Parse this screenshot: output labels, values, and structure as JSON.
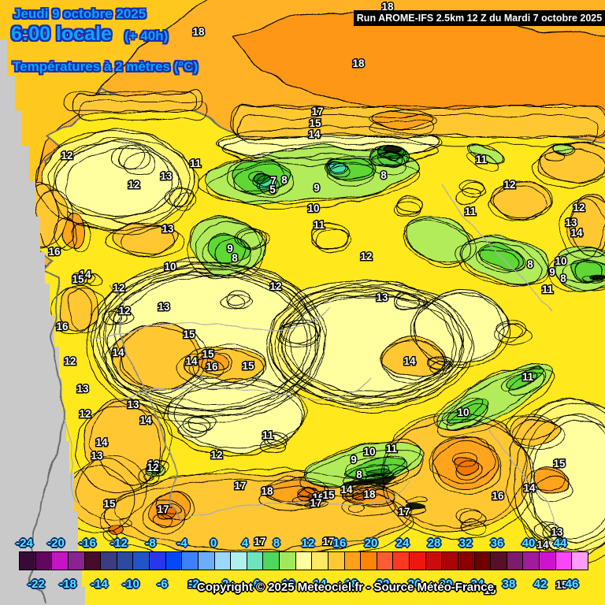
{
  "header": {
    "date": "Jeudi 9 octobre 2025",
    "time": "6:00 locale",
    "offset": "(+ 40h)",
    "variable": "Températures à 2 mètres (°C)"
  },
  "run_bar": {
    "text": "Run AROME-IFS 2.5km 12 Z du Mardi 7 octobre 2025"
  },
  "footer": {
    "copyright": "Copyright © 2025 Meteociel.fr - Source Météo-France"
  },
  "colors": {
    "header_text": "#0ba6f5",
    "header_outline": "#1a2bb0",
    "run_bar_bg": "#000000",
    "run_bar_text": "#ffffff",
    "scale_label": "#5fe4ff",
    "scale_label_outline": "#032a6e",
    "contour_label_fill": "#ffffff",
    "contour_label_outline": "#000000",
    "sea_orange": "#ffb228",
    "sea_dark_orange": "#ff9714",
    "sea_gold": "#ffc81e",
    "land_yellow": "#ffe81a",
    "land_pale_yellow": "#ffffa0",
    "land_gold": "#ffc832",
    "land_orange": "#ffa41e",
    "land_dark_orange": "#f07800",
    "mountain_light_green": "#b2ec5a",
    "mountain_green": "#5ed836",
    "mountain_teal": "#47dfa2",
    "outside_domain_grey": "#c9c9c9",
    "coastline_grey": "#6e6e6e"
  },
  "scale": {
    "unit": "°C",
    "top_labels": [
      "-24",
      "-20",
      "-16",
      "-12",
      "-8",
      "-4",
      "0",
      "4",
      "8",
      "12",
      "16",
      "20",
      "24",
      "28",
      "32",
      "36",
      "40",
      "44"
    ],
    "bottom_labels": [
      "-22",
      "-18",
      "-14",
      "-10",
      "-6",
      "-2",
      "2",
      "6",
      "10",
      "14",
      "18",
      "22",
      "26",
      "30",
      "34",
      "38",
      "42",
      "46"
    ],
    "swatches": [
      "#380a38",
      "#62065e",
      "#c414c4",
      "#8a2290",
      "#460c2a",
      "#3c3c80",
      "#2c4aa0",
      "#2054c8",
      "#2836ec",
      "#0448fc",
      "#3c80fc",
      "#6cacfc",
      "#9cd8fc",
      "#aef0ec",
      "#6ce4bc",
      "#50d85c",
      "#a2e85c",
      "#ffffa0",
      "#ffe863",
      "#ffc832",
      "#ffa018",
      "#ff8404",
      "#fc5c34",
      "#fc3820",
      "#ec1810",
      "#cc0c0c",
      "#ac0404",
      "#8c0000",
      "#700000",
      "#581028",
      "#7c1c6c",
      "#a01c9c",
      "#cc14cc",
      "#f846f8",
      "#fc9cfc"
    ]
  },
  "map": {
    "contour_labels": [
      [
        18,
        252,
        40
      ],
      [
        18,
        492,
        8
      ],
      [
        18,
        455,
        80
      ],
      [
        17,
        403,
        141
      ],
      [
        15,
        400,
        156
      ],
      [
        14,
        399,
        170
      ],
      [
        12,
        85,
        197
      ],
      [
        13,
        211,
        223
      ],
      [
        12,
        170,
        234
      ],
      [
        13,
        213,
        290
      ],
      [
        16,
        69,
        319
      ],
      [
        10,
        216,
        338
      ],
      [
        14,
        108,
        348
      ],
      [
        15,
        99,
        354
      ],
      [
        16,
        79,
        414
      ],
      [
        8,
        361,
        228
      ],
      [
        7,
        347,
        229
      ],
      [
        5,
        346,
        240
      ],
      [
        9,
        402,
        238
      ],
      [
        10,
        398,
        264
      ],
      [
        11,
        405,
        285
      ],
      [
        11,
        248,
        207
      ],
      [
        8,
        487,
        222
      ],
      [
        9,
        292,
        315
      ],
      [
        8,
        298,
        327
      ],
      [
        11,
        611,
        202
      ],
      [
        12,
        647,
        234
      ],
      [
        12,
        465,
        325
      ],
      [
        12,
        350,
        363
      ],
      [
        11,
        597,
        268
      ],
      [
        12,
        151,
        365
      ],
      [
        13,
        208,
        389
      ],
      [
        12,
        158,
        394
      ],
      [
        15,
        240,
        424
      ],
      [
        14,
        243,
        458
      ],
      [
        15,
        264,
        449
      ],
      [
        16,
        269,
        465
      ],
      [
        15,
        315,
        464
      ],
      [
        14,
        150,
        447
      ],
      [
        12,
        89,
        458
      ],
      [
        13,
        105,
        493
      ],
      [
        12,
        108,
        525
      ],
      [
        13,
        169,
        513
      ],
      [
        14,
        185,
        533
      ],
      [
        14,
        129,
        561
      ],
      [
        13,
        123,
        578
      ],
      [
        12,
        195,
        589
      ],
      [
        11,
        340,
        552
      ],
      [
        12,
        275,
        577
      ],
      [
        13,
        485,
        377
      ],
      [
        14,
        520,
        458
      ],
      [
        12,
        735,
        263
      ],
      [
        13,
        725,
        282
      ],
      [
        14,
        732,
        295
      ],
      [
        8,
        673,
        335
      ],
      [
        10,
        712,
        331
      ],
      [
        9,
        701,
        345
      ],
      [
        8,
        715,
        353
      ],
      [
        11,
        695,
        367
      ],
      [
        11,
        670,
        478
      ],
      [
        10,
        588,
        523
      ],
      [
        15,
        710,
        588
      ],
      [
        14,
        672,
        619
      ],
      [
        16,
        632,
        629
      ],
      [
        13,
        707,
        675
      ],
      [
        15,
        139,
        639
      ],
      [
        12,
        194,
        593
      ],
      [
        17,
        305,
        616
      ],
      [
        18,
        339,
        623
      ],
      [
        17,
        207,
        646
      ],
      [
        16,
        404,
        631
      ],
      [
        15,
        417,
        628
      ],
      [
        17,
        401,
        638
      ],
      [
        14,
        440,
        621
      ],
      [
        18,
        469,
        627
      ],
      [
        8,
        456,
        602
      ],
      [
        9,
        449,
        583
      ],
      [
        10,
        469,
        573
      ],
      [
        11,
        497,
        569
      ],
      [
        17,
        513,
        649
      ],
      [
        17,
        330,
        687
      ],
      [
        17,
        417,
        687
      ],
      [
        14,
        689,
        691
      ],
      [
        15,
        713,
        742
      ],
      [
        15,
        622,
        749
      ],
      [
        16,
        246,
        741
      ]
    ]
  }
}
